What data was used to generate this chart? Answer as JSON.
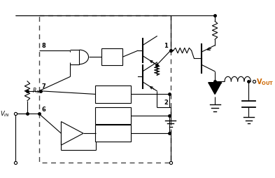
{
  "background": "#ffffff",
  "line_color": "#000000",
  "vout_color": "#cc6600",
  "fig_width": 3.93,
  "fig_height": 2.54,
  "dpi": 100
}
